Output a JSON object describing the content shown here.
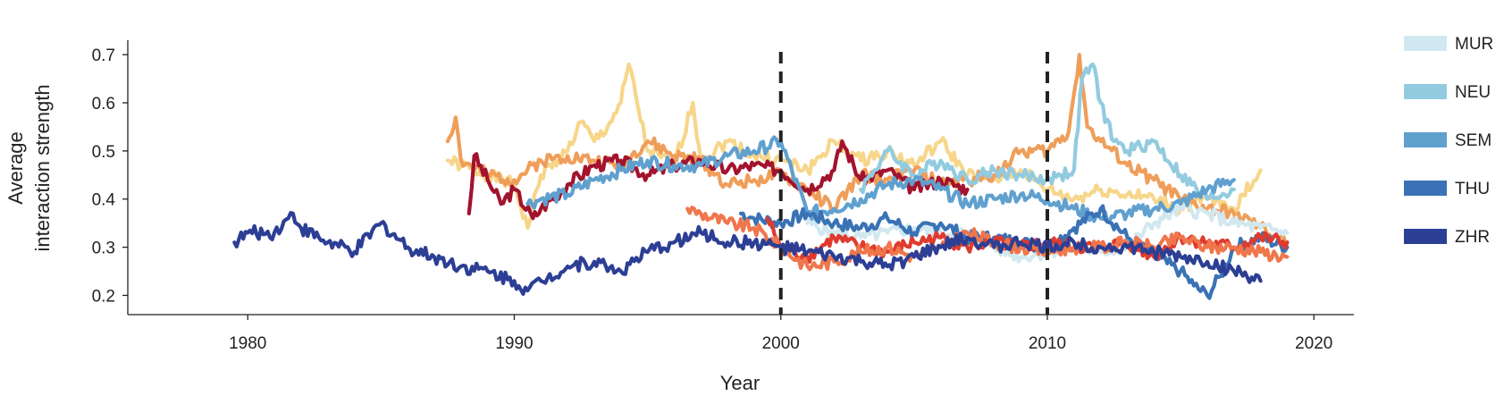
{
  "chart_data": {
    "type": "line",
    "title": "",
    "xlabel": "Year",
    "ylabel_lines": [
      "Average",
      "interaction strength"
    ],
    "xlim": [
      1975.5,
      2021.5
    ],
    "ylim": [
      0.16,
      0.73
    ],
    "xticks": [
      1980,
      1990,
      2000,
      2010,
      2020
    ],
    "yticks": [
      0.2,
      0.3,
      0.4,
      0.5,
      0.6,
      0.7
    ],
    "ytick_labels": [
      "0.2",
      "0.3",
      "0.4",
      "0.5",
      "0.6",
      "0.7"
    ],
    "vlines": [
      2000,
      2010
    ],
    "legend_position": "right",
    "legend": [
      {
        "name": "MUR",
        "color": "#d2e8f0"
      },
      {
        "name": "NEU",
        "color": "#92cbe0"
      },
      {
        "name": "SEM",
        "color": "#5fa0cf"
      },
      {
        "name": "THU",
        "color": "#3a72b5"
      },
      {
        "name": "ZHR",
        "color": "#2c3f95"
      }
    ],
    "series": [
      {
        "name": "series-pale-yellow",
        "color": "#f7d68a",
        "x": [
          1987.5,
          1988,
          1989,
          1990,
          1990.5,
          1991,
          1992,
          1992.5,
          1993,
          1993.5,
          1994,
          1994.3,
          1995,
          1996,
          1996.7,
          1997,
          1998,
          1999,
          2000,
          2001,
          2002,
          2003,
          2004,
          2005,
          2006,
          2007,
          2008,
          2009,
          2010,
          2011,
          2012,
          2013,
          2014,
          2015,
          2016,
          2017,
          2018
        ],
        "y": [
          0.48,
          0.47,
          0.45,
          0.43,
          0.34,
          0.45,
          0.5,
          0.56,
          0.52,
          0.55,
          0.6,
          0.68,
          0.5,
          0.47,
          0.6,
          0.48,
          0.52,
          0.49,
          0.48,
          0.46,
          0.52,
          0.48,
          0.5,
          0.47,
          0.52,
          0.45,
          0.44,
          0.46,
          0.42,
          0.4,
          0.42,
          0.41,
          0.4,
          0.38,
          0.4,
          0.38,
          0.46
        ]
      },
      {
        "name": "series-orange",
        "color": "#ef9e5a",
        "x": [
          1987.5,
          1987.8,
          1988,
          1989,
          1990,
          1991,
          1992,
          1993,
          1994,
          1995,
          1996,
          1997,
          1998,
          1999,
          2000,
          2001,
          2002,
          2003,
          2004,
          2005,
          2006,
          2007,
          2008,
          2009,
          2010,
          2010.8,
          2011.2,
          2011.5,
          2012,
          2013,
          2014,
          2015,
          2016,
          2017,
          2018,
          2019
        ],
        "y": [
          0.52,
          0.57,
          0.48,
          0.45,
          0.44,
          0.48,
          0.49,
          0.48,
          0.47,
          0.52,
          0.49,
          0.48,
          0.43,
          0.44,
          0.45,
          0.42,
          0.38,
          0.45,
          0.44,
          0.46,
          0.43,
          0.44,
          0.45,
          0.5,
          0.5,
          0.54,
          0.7,
          0.55,
          0.52,
          0.47,
          0.44,
          0.4,
          0.38,
          0.37,
          0.34,
          0.31
        ]
      },
      {
        "name": "series-dark-red",
        "color": "#a2132e",
        "x": [
          1988.3,
          1988.5,
          1989,
          1989.5,
          1990,
          1990.7,
          1991,
          1992,
          1993,
          1994,
          1995,
          1996,
          1997,
          1998,
          1999,
          2000,
          2001,
          2002,
          2002.3,
          2003,
          2004,
          2005,
          2006,
          2007
        ],
        "y": [
          0.37,
          0.49,
          0.44,
          0.39,
          0.42,
          0.36,
          0.38,
          0.43,
          0.47,
          0.48,
          0.45,
          0.47,
          0.48,
          0.46,
          0.47,
          0.46,
          0.42,
          0.46,
          0.52,
          0.44,
          0.46,
          0.42,
          0.44,
          0.42
        ]
      },
      {
        "name": "series-sky-blue-neu",
        "color": "#92cbe0",
        "x": [
          2003,
          2004,
          2005,
          2006,
          2007,
          2008,
          2009,
          2010,
          2010.5,
          2011,
          2011.3,
          2011.7,
          2012,
          2012.5,
          2013,
          2014,
          2015,
          2016,
          2017
        ],
        "y": [
          0.42,
          0.5,
          0.45,
          0.48,
          0.44,
          0.46,
          0.45,
          0.44,
          0.45,
          0.46,
          0.65,
          0.68,
          0.6,
          0.52,
          0.5,
          0.52,
          0.45,
          0.4,
          0.42
        ]
      },
      {
        "name": "series-pale-blue-mur",
        "color": "#d2e8f0",
        "x": [
          2001,
          2002,
          2003,
          2004,
          2005,
          2006,
          2007,
          2008,
          2009,
          2010,
          2011,
          2012,
          2013,
          2014,
          2015,
          2016,
          2017,
          2018,
          2019
        ],
        "y": [
          0.35,
          0.33,
          0.32,
          0.33,
          0.34,
          0.33,
          0.33,
          0.3,
          0.28,
          0.29,
          0.3,
          0.29,
          0.3,
          0.35,
          0.38,
          0.37,
          0.35,
          0.34,
          0.33
        ]
      },
      {
        "name": "series-mid-blue-sem",
        "color": "#5fa0cf",
        "x": [
          1990.5,
          1991,
          1992,
          1993,
          1994,
          1995,
          1996,
          1997,
          1998,
          1999,
          2000,
          2001,
          2002,
          2003,
          2004,
          2005,
          2006,
          2007,
          2008,
          2009,
          2010,
          2011,
          2012,
          2013,
          2014,
          2015,
          2016,
          2017
        ],
        "y": [
          0.39,
          0.4,
          0.41,
          0.44,
          0.46,
          0.48,
          0.47,
          0.47,
          0.49,
          0.5,
          0.52,
          0.37,
          0.38,
          0.4,
          0.43,
          0.44,
          0.42,
          0.39,
          0.4,
          0.41,
          0.4,
          0.38,
          0.36,
          0.37,
          0.38,
          0.39,
          0.42,
          0.44
        ]
      },
      {
        "name": "series-blue-thu",
        "color": "#3a72b5",
        "x": [
          1998.5,
          1999,
          2000,
          2001,
          2002,
          2003,
          2004,
          2005,
          2006,
          2007,
          2008,
          2009,
          2010,
          2011,
          2012,
          2013,
          2014,
          2015,
          2015.5,
          2016,
          2016.5,
          2017,
          2018,
          2019
        ],
        "y": [
          0.37,
          0.36,
          0.35,
          0.37,
          0.35,
          0.34,
          0.36,
          0.33,
          0.35,
          0.32,
          0.32,
          0.31,
          0.3,
          0.34,
          0.38,
          0.32,
          0.28,
          0.25,
          0.22,
          0.2,
          0.24,
          0.3,
          0.32,
          0.3
        ]
      },
      {
        "name": "series-red",
        "color": "#e03a2e",
        "x": [
          1999.5,
          2000,
          2001,
          2002,
          2003,
          2004,
          2005,
          2006,
          2007,
          2008,
          2009,
          2010,
          2011,
          2012,
          2013,
          2014,
          2015,
          2016,
          2017,
          2018,
          2019
        ],
        "y": [
          0.36,
          0.3,
          0.28,
          0.32,
          0.3,
          0.29,
          0.31,
          0.32,
          0.3,
          0.31,
          0.3,
          0.31,
          0.3,
          0.3,
          0.31,
          0.28,
          0.32,
          0.31,
          0.3,
          0.32,
          0.31
        ]
      },
      {
        "name": "series-salmon",
        "color": "#f0764c",
        "x": [
          1996.5,
          1997,
          1998,
          1999,
          2000,
          2001,
          2002,
          2003,
          2004,
          2005,
          2006,
          2007,
          2008,
          2009,
          2010,
          2011,
          2012,
          2013,
          2014,
          2015,
          2016,
          2017,
          2018,
          2019
        ],
        "y": [
          0.38,
          0.37,
          0.35,
          0.34,
          0.3,
          0.26,
          0.27,
          0.29,
          0.3,
          0.28,
          0.3,
          0.33,
          0.31,
          0.3,
          0.29,
          0.3,
          0.3,
          0.31,
          0.3,
          0.32,
          0.3,
          0.3,
          0.29,
          0.28
        ]
      },
      {
        "name": "series-navy-zhr",
        "color": "#2c3f95",
        "x": [
          1979.5,
          1980,
          1981,
          1981.7,
          1982,
          1983,
          1984,
          1985,
          1986,
          1987,
          1988,
          1989,
          1990,
          1990.5,
          1991,
          1992,
          1993,
          1994,
          1995,
          1996,
          1997,
          1998,
          1999,
          2000,
          2001,
          2002,
          2003,
          2004,
          2005,
          2006,
          2007,
          2008,
          2009,
          2010,
          2011,
          2012,
          2013,
          2014,
          2015,
          2016,
          2017,
          2018
        ],
        "y": [
          0.31,
          0.33,
          0.33,
          0.37,
          0.34,
          0.31,
          0.29,
          0.35,
          0.3,
          0.28,
          0.26,
          0.25,
          0.23,
          0.21,
          0.23,
          0.26,
          0.27,
          0.25,
          0.29,
          0.31,
          0.33,
          0.31,
          0.31,
          0.3,
          0.29,
          0.28,
          0.27,
          0.26,
          0.28,
          0.3,
          0.32,
          0.3,
          0.31,
          0.3,
          0.31,
          0.3,
          0.3,
          0.29,
          0.28,
          0.27,
          0.25,
          0.23
        ]
      }
    ]
  }
}
